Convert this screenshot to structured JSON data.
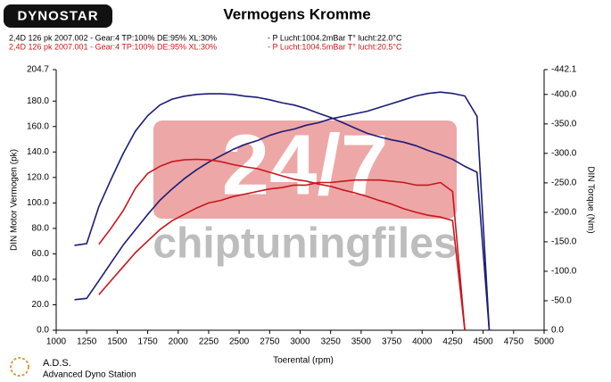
{
  "chart_data": {
    "type": "line",
    "logo": "DYNOSTAR",
    "title": "Vermogens Kromme",
    "legend": [
      {
        "label": "2,4D 126 pk 2007.002 - Gear:4 TP:100% DE:95% XL:30%",
        "info": "- P Lucht:1004.2mBar T° lucht:22.0°C",
        "color": "#000000"
      },
      {
        "label": "2,4D 126 pk 2007.001 - Gear:4 TP:100% DE:95% XL:30%",
        "info": "- P Lucht:1004.5mBar T° lucht:20.5°C",
        "color": "#d01818"
      }
    ],
    "watermark": [
      "24/7",
      "chiptuningfiles"
    ],
    "xlabel": "Toerental (rpm)",
    "ylabel": "DIN Motor Vermogen (pk)",
    "y2label": "DIN Torque (Nm)",
    "footer": [
      "A.D.S.",
      "Advanced Dyno Station"
    ],
    "grid": false,
    "xlim": [
      1000,
      5000
    ],
    "xticks": [
      1000,
      1250,
      1500,
      1750,
      2000,
      2250,
      2500,
      2750,
      3000,
      3250,
      3500,
      3750,
      4000,
      4250,
      4500,
      4750,
      5000
    ],
    "ylim": [
      0,
      204.7
    ],
    "yticks": [
      {
        "value": 0,
        "label": "0.0"
      },
      {
        "value": 20,
        "label": "20.0"
      },
      {
        "value": 40,
        "label": "40.0"
      },
      {
        "value": 60,
        "label": "60.0"
      },
      {
        "value": 80,
        "label": "80.0"
      },
      {
        "value": 100,
        "label": "100.0"
      },
      {
        "value": 120,
        "label": "120.0"
      },
      {
        "value": 140,
        "label": "140.0"
      },
      {
        "value": 160,
        "label": "160.0"
      },
      {
        "value": 180,
        "label": "180.0"
      },
      204.7
    ],
    "y2lim": [
      0,
      442.1
    ],
    "y2ticks": [
      {
        "value": 0,
        "label": "0.0"
      },
      {
        "value": 50,
        "label": "-50.0"
      },
      {
        "value": 100,
        "label": "-100.0"
      },
      {
        "value": 150,
        "label": "-150.0"
      },
      {
        "value": 200,
        "label": "-200.0"
      },
      {
        "value": 250,
        "label": "-250.0"
      },
      {
        "value": 300,
        "label": "-300.0"
      },
      {
        "value": 350,
        "label": "-350.0"
      },
      {
        "value": 400,
        "label": "-400.0"
      },
      {
        "value": 442.1,
        "label": "-442.1"
      }
    ],
    "x": [
      1150,
      1250,
      1350,
      1450,
      1550,
      1650,
      1750,
      1850,
      1950,
      2050,
      2150,
      2250,
      2350,
      2450,
      2550,
      2650,
      2750,
      2850,
      2950,
      3050,
      3150,
      3250,
      3350,
      3450,
      3550,
      3650,
      3750,
      3850,
      3950,
      4050,
      4150,
      4250,
      4350,
      4450,
      4550
    ],
    "series": [
      {
        "color": "#1c1c78",
        "axis": "y",
        "values": [
          24,
          25,
          39,
          53,
          67,
          79,
          91,
          102,
          111,
          119,
          126,
          132,
          137,
          142,
          146,
          149,
          153,
          156,
          158,
          161,
          163,
          166,
          168,
          170,
          172,
          175,
          178,
          181,
          184,
          186,
          187,
          186,
          184,
          168,
          0
        ]
      },
      {
        "color": "#1c1c78",
        "axis": "y2",
        "values": [
          144,
          147,
          210,
          256,
          300,
          338,
          364,
          382,
          392,
          397,
          400,
          401,
          401,
          400,
          397,
          395,
          391,
          386,
          382,
          376,
          368,
          361,
          352,
          343,
          334,
          328,
          323,
          319,
          313,
          305,
          298,
          290,
          278,
          268,
          0
        ]
      },
      {
        "color": "#c8161c",
        "axis": "y",
        "values": [
          null,
          null,
          28,
          39,
          50,
          61,
          70,
          79,
          86,
          91,
          96,
          100,
          102,
          105,
          107,
          109,
          111,
          112,
          114,
          114,
          116,
          116,
          117,
          118,
          118,
          118,
          117,
          116,
          114,
          114,
          116,
          109,
          0,
          null,
          null
        ]
      },
      {
        "color": "#c8161c",
        "axis": "y2",
        "values": [
          null,
          null,
          146,
          173,
          203,
          241,
          266,
          278,
          286,
          289,
          290,
          289,
          286,
          281,
          277,
          274,
          268,
          262,
          256,
          253,
          248,
          244,
          238,
          233,
          227,
          220,
          214,
          206,
          200,
          195,
          192,
          186,
          0,
          null,
          null
        ]
      }
    ]
  }
}
